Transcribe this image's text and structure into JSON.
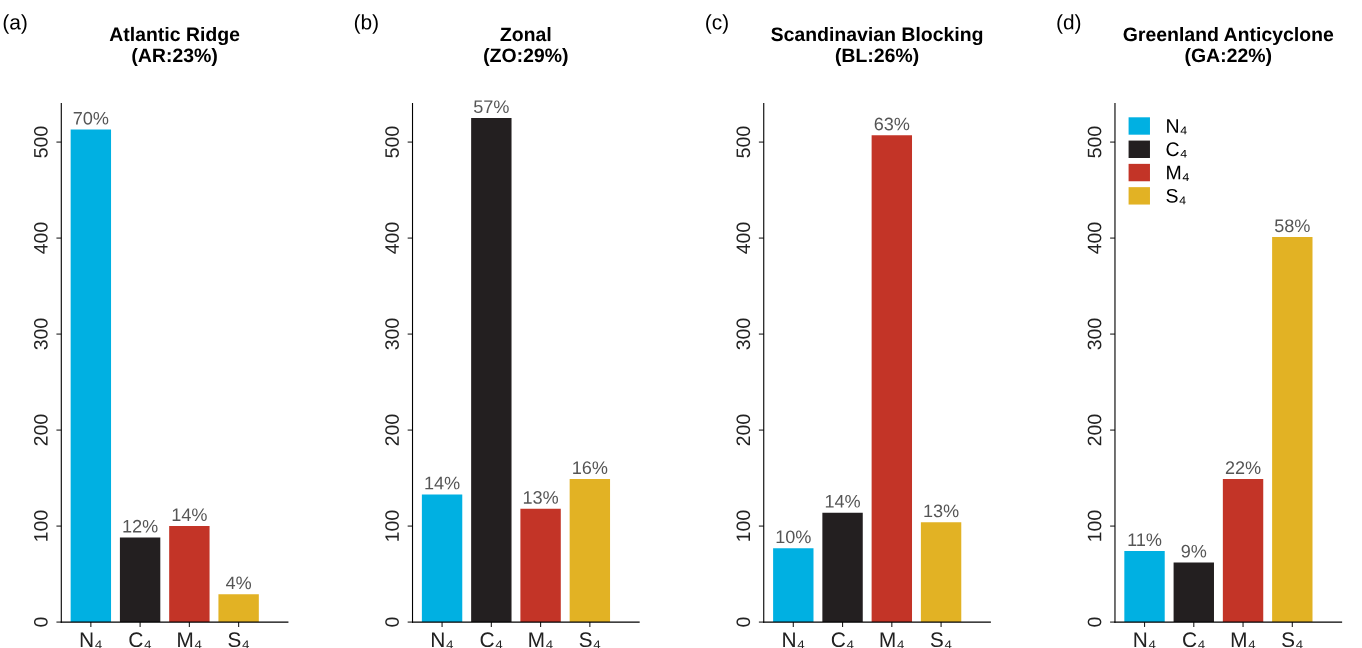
{
  "chart_data": [
    {
      "type": "bar",
      "title": "Atlantic Ridge\n(AR:23%)",
      "annotations": [
        "(a)",
        {
          "text": "70%",
          "x": "N₄",
          "y": 513
        },
        {
          "text": "12%",
          "x": "C₄",
          "y": 88
        },
        {
          "text": "14%",
          "x": "M₄",
          "y": 100
        },
        {
          "text": "4%",
          "x": "S₄",
          "y": 29
        }
      ],
      "categories": [
        "N₄",
        "C₄",
        "M₄",
        "S₄"
      ],
      "values": [
        513,
        88,
        100,
        29
      ],
      "colors": [
        "#00b0e2",
        "#231f20",
        "#c33427",
        "#e2b224"
      ],
      "ylim": [
        0,
        540
      ],
      "yticks": [
        0,
        100,
        200,
        300,
        400,
        500
      ],
      "legend": false
    },
    {
      "type": "bar",
      "title": "Zonal\n(ZO:29%)",
      "annotations": [
        "(b)",
        {
          "text": "14%",
          "x": "N₄",
          "y": 133
        },
        {
          "text": "57%",
          "x": "C₄",
          "y": 525
        },
        {
          "text": "13%",
          "x": "M₄",
          "y": 118
        },
        {
          "text": "16%",
          "x": "S₄",
          "y": 149
        }
      ],
      "categories": [
        "N₄",
        "C₄",
        "M₄",
        "S₄"
      ],
      "values": [
        133,
        525,
        118,
        149
      ],
      "colors": [
        "#00b0e2",
        "#231f20",
        "#c33427",
        "#e2b224"
      ],
      "ylim": [
        0,
        540
      ],
      "yticks": [
        0,
        100,
        200,
        300,
        400,
        500
      ],
      "legend": false
    },
    {
      "type": "bar",
      "title": "Scandinavian Blocking\n(BL:26%)",
      "annotations": [
        "(c)",
        {
          "text": "10%",
          "x": "N₄",
          "y": 77
        },
        {
          "text": "14%",
          "x": "C₄",
          "y": 114
        },
        {
          "text": "63%",
          "x": "M₄",
          "y": 507
        },
        {
          "text": "13%",
          "x": "S₄",
          "y": 104
        }
      ],
      "categories": [
        "N₄",
        "C₄",
        "M₄",
        "S₄"
      ],
      "values": [
        77,
        114,
        507,
        104
      ],
      "colors": [
        "#00b0e2",
        "#231f20",
        "#c33427",
        "#e2b224"
      ],
      "ylim": [
        0,
        540
      ],
      "yticks": [
        0,
        100,
        200,
        300,
        400,
        500
      ],
      "legend": false
    },
    {
      "type": "bar",
      "title": "Greenland Anticyclone\n(GA:22%)",
      "annotations": [
        "(d)",
        {
          "text": "11%",
          "x": "N₄",
          "y": 74
        },
        {
          "text": "9%",
          "x": "C₄",
          "y": 62
        },
        {
          "text": "22%",
          "x": "M₄",
          "y": 149
        },
        {
          "text": "58%",
          "x": "S₄",
          "y": 401
        }
      ],
      "categories": [
        "N₄",
        "C₄",
        "M₄",
        "S₄"
      ],
      "series": [
        {
          "name": "N₄",
          "color": "#00b0e2",
          "values": [
            74,
            null,
            null,
            null
          ]
        },
        {
          "name": "C₄",
          "color": "#231f20",
          "values": [
            null,
            62,
            null,
            null
          ]
        },
        {
          "name": "M₄",
          "color": "#c33427",
          "values": [
            null,
            null,
            149,
            null
          ]
        },
        {
          "name": "S₄",
          "color": "#e2b224",
          "values": [
            null,
            null,
            null,
            401
          ]
        }
      ],
      "ylim": [
        0,
        540
      ],
      "yticks": [
        0,
        100,
        200,
        300,
        400,
        500
      ],
      "legend": "top left"
    }
  ]
}
